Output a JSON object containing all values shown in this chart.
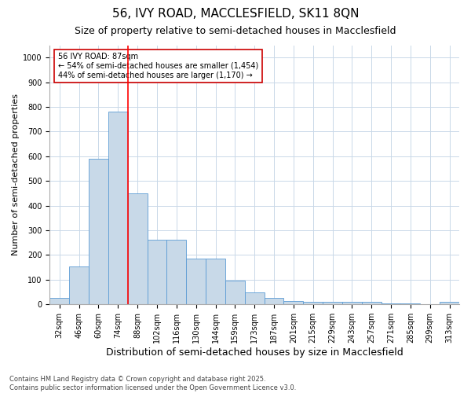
{
  "title": "56, IVY ROAD, MACCLESFIELD, SK11 8QN",
  "subtitle": "Size of property relative to semi-detached houses in Macclesfield",
  "xlabel": "Distribution of semi-detached houses by size in Macclesfield",
  "ylabel": "Number of semi-detached properties",
  "categories": [
    "32sqm",
    "46sqm",
    "60sqm",
    "74sqm",
    "88sqm",
    "102sqm",
    "116sqm",
    "130sqm",
    "144sqm",
    "159sqm",
    "173sqm",
    "187sqm",
    "201sqm",
    "215sqm",
    "229sqm",
    "243sqm",
    "257sqm",
    "271sqm",
    "285sqm",
    "299sqm",
    "313sqm"
  ],
  "values": [
    25,
    152,
    590,
    780,
    450,
    263,
    263,
    185,
    185,
    97,
    47,
    25,
    15,
    10,
    10,
    10,
    10,
    5,
    5,
    2,
    10
  ],
  "bar_color": "#c8d9e8",
  "bar_edge_color": "#5b9bd5",
  "vertical_line_index": 3.5,
  "annotation_text": "56 IVY ROAD: 87sqm\n← 54% of semi-detached houses are smaller (1,454)\n44% of semi-detached houses are larger (1,170) →",
  "annotation_box_color": "#ffffff",
  "annotation_box_edge_color": "#cc0000",
  "footer_text": "Contains HM Land Registry data © Crown copyright and database right 2025.\nContains public sector information licensed under the Open Government Licence v3.0.",
  "ylim": [
    0,
    1050
  ],
  "yticks": [
    0,
    100,
    200,
    300,
    400,
    500,
    600,
    700,
    800,
    900,
    1000
  ],
  "background_color": "#ffffff",
  "grid_color": "#c9d8e8",
  "title_fontsize": 11,
  "subtitle_fontsize": 9,
  "ylabel_fontsize": 8,
  "xlabel_fontsize": 9,
  "tick_fontsize": 7,
  "annotation_fontsize": 7,
  "footer_fontsize": 6
}
